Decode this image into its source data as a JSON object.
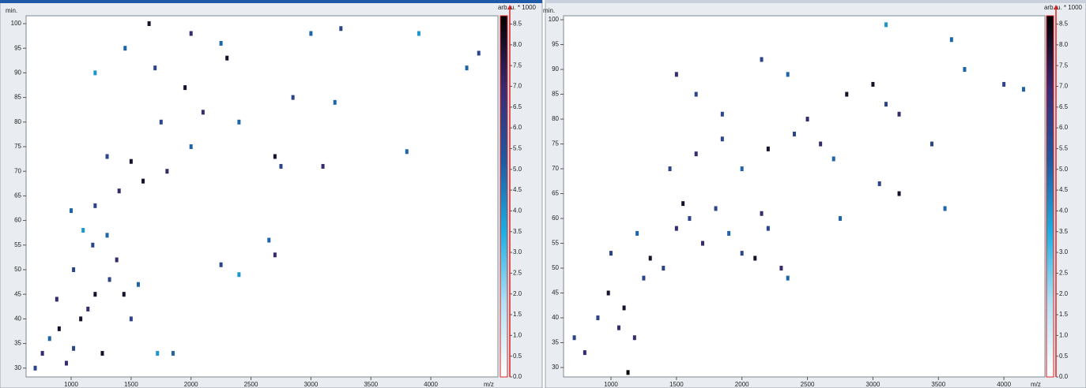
{
  "chart_data": [
    {
      "type": "heatmap",
      "x_label": "m/z",
      "y_label": "min.",
      "z_label": "arb. u. * 1000",
      "xlim": [
        624,
        4560
      ],
      "ylim": [
        28.2,
        101.6
      ],
      "zlim": [
        0,
        8.7
      ],
      "xticks": [
        1000,
        1500,
        2000,
        2500,
        3000,
        3500,
        4000
      ],
      "yticks": [
        30,
        35,
        40,
        45,
        50,
        55,
        60,
        65,
        70,
        75,
        80,
        85,
        90,
        95,
        100
      ],
      "zticks": [
        {
          "value": 0,
          "label": "0.0"
        },
        {
          "value": 0.5,
          "label": "0.5"
        },
        {
          "value": 1,
          "label": "1.0"
        },
        {
          "value": 1.5,
          "label": "1.5"
        },
        {
          "value": 2,
          "label": "2.0"
        },
        {
          "value": 2.5,
          "label": "2.5"
        },
        {
          "value": 3,
          "label": "3.0"
        },
        {
          "value": 3.5,
          "label": "3.5"
        },
        {
          "value": 4,
          "label": "4.0"
        },
        {
          "value": 4.5,
          "label": "4.5"
        },
        {
          "value": 5,
          "label": "5.0"
        },
        {
          "value": 5.5,
          "label": "5.5"
        },
        {
          "value": 6,
          "label": "6.0"
        },
        {
          "value": 6.5,
          "label": "6.5"
        },
        {
          "value": 7,
          "label": "7.0"
        },
        {
          "value": 7.5,
          "label": "7.5"
        },
        {
          "value": 8,
          "label": "8.0"
        },
        {
          "value": 8.5,
          "label": "8.5"
        }
      ],
      "colormap": [
        "#ffffff",
        "#b4e2f4",
        "#1cb0e2",
        "#1e5aa0",
        "#3a2a70",
        "#000000"
      ],
      "x": [
        700,
        760,
        820,
        900,
        960,
        1020,
        1080,
        1140,
        1200,
        1260,
        1320,
        1380,
        1440,
        1500,
        1560,
        1020,
        880,
        1180,
        1300,
        1100,
        1720,
        1850,
        2250,
        2400,
        2700,
        2650,
        1000,
        1200,
        1400,
        1600,
        1800,
        1500,
        1300,
        2000,
        2700,
        2750,
        3100,
        3800,
        1750,
        2100,
        2400,
        2850,
        3200,
        1950,
        1700,
        2300,
        1650,
        2000,
        2250,
        3000,
        3250,
        4400,
        4300,
        3900,
        1450,
        1200
      ],
      "y": [
        30,
        33,
        36,
        38,
        31,
        34,
        40,
        42,
        45,
        33,
        48,
        52,
        45,
        40,
        47,
        50,
        44,
        55,
        57,
        58,
        33,
        33,
        51,
        49,
        53,
        56,
        62,
        63,
        66,
        68,
        70,
        72,
        73,
        75,
        73,
        71,
        71,
        74,
        80,
        82,
        80,
        85,
        84,
        87,
        91,
        93,
        100,
        98,
        96,
        98,
        99,
        94,
        91,
        98,
        95,
        90
      ],
      "values": [
        6,
        7,
        5,
        8,
        7,
        6,
        8,
        7,
        8,
        8,
        6,
        7,
        8,
        6,
        5,
        6,
        7,
        6,
        5,
        4,
        4,
        5,
        6,
        4,
        7,
        5,
        5,
        6,
        7,
        8,
        7,
        8,
        6,
        5,
        8,
        6,
        7,
        5,
        6,
        7,
        5,
        6,
        5,
        8,
        6,
        8,
        8,
        7,
        5,
        5,
        6,
        6,
        5,
        4,
        5,
        4
      ]
    },
    {
      "type": "heatmap",
      "x_label": "m/z",
      "y_label": "min.",
      "z_label": "arb. u. * 1000",
      "xlim": [
        638,
        4313
      ],
      "ylim": [
        28.1,
        100.8
      ],
      "zlim": [
        0,
        8.7
      ],
      "xticks": [
        1000,
        1500,
        2000,
        2500,
        3000,
        3500,
        4000
      ],
      "yticks": [
        30,
        35,
        40,
        45,
        50,
        55,
        60,
        65,
        70,
        75,
        80,
        85,
        90,
        95,
        100
      ],
      "zticks": [
        {
          "value": 0,
          "label": "0.0"
        },
        {
          "value": 0.5,
          "label": "0.5"
        },
        {
          "value": 1,
          "label": "1.0"
        },
        {
          "value": 1.5,
          "label": "1.5"
        },
        {
          "value": 2,
          "label": "2.0"
        },
        {
          "value": 2.5,
          "label": "2.5"
        },
        {
          "value": 3,
          "label": "3.0"
        },
        {
          "value": 3.5,
          "label": "3.5"
        },
        {
          "value": 4,
          "label": "4.0"
        },
        {
          "value": 4.5,
          "label": "4.5"
        },
        {
          "value": 5,
          "label": "5.0"
        },
        {
          "value": 5.5,
          "label": "5.5"
        },
        {
          "value": 6,
          "label": "6.0"
        },
        {
          "value": 6.5,
          "label": "6.5"
        },
        {
          "value": 7,
          "label": "7.0"
        },
        {
          "value": 7.5,
          "label": "7.5"
        },
        {
          "value": 8,
          "label": "8.0"
        },
        {
          "value": 8.5,
          "label": "8.5"
        }
      ],
      "colormap": [
        "#ffffff",
        "#b4e2f4",
        "#1cb0e2",
        "#1e5aa0",
        "#3a2a70",
        "#000000"
      ],
      "x": [
        720,
        800,
        900,
        980,
        1060,
        1100,
        1130,
        1180,
        1250,
        1300,
        1400,
        1500,
        1550,
        1600,
        1700,
        1800,
        1900,
        2000,
        2100,
        2150,
        2200,
        2300,
        2350,
        1200,
        1000,
        1450,
        1650,
        1850,
        2000,
        2200,
        2400,
        2600,
        2700,
        2500,
        2800,
        3000,
        3100,
        3200,
        3200,
        3050,
        3550,
        3450,
        3700,
        4000,
        4150,
        1500,
        1650,
        1850,
        2350,
        2150,
        3600,
        2750,
        3100
      ],
      "y": [
        36,
        33,
        40,
        45,
        38,
        42,
        29,
        36,
        48,
        52,
        50,
        58,
        63,
        60,
        55,
        62,
        57,
        53,
        52,
        61,
        58,
        50,
        48,
        57,
        53,
        70,
        73,
        76,
        70,
        74,
        77,
        75,
        72,
        80,
        85,
        87,
        83,
        81,
        65,
        67,
        62,
        75,
        90,
        87,
        86,
        89,
        85,
        81,
        89,
        92,
        96,
        60,
        99
      ],
      "values": [
        6,
        7,
        6,
        8,
        7,
        8,
        8.5,
        7,
        6,
        8,
        6,
        7,
        8,
        6,
        7,
        6,
        5,
        6,
        8,
        7,
        6,
        7,
        5,
        5,
        6,
        6,
        7,
        6,
        5,
        8,
        6,
        7,
        5,
        7,
        8,
        8,
        6,
        7,
        8,
        6,
        5,
        6,
        5,
        6,
        5,
        7,
        6,
        6,
        5,
        6,
        5,
        5,
        4
      ]
    }
  ]
}
